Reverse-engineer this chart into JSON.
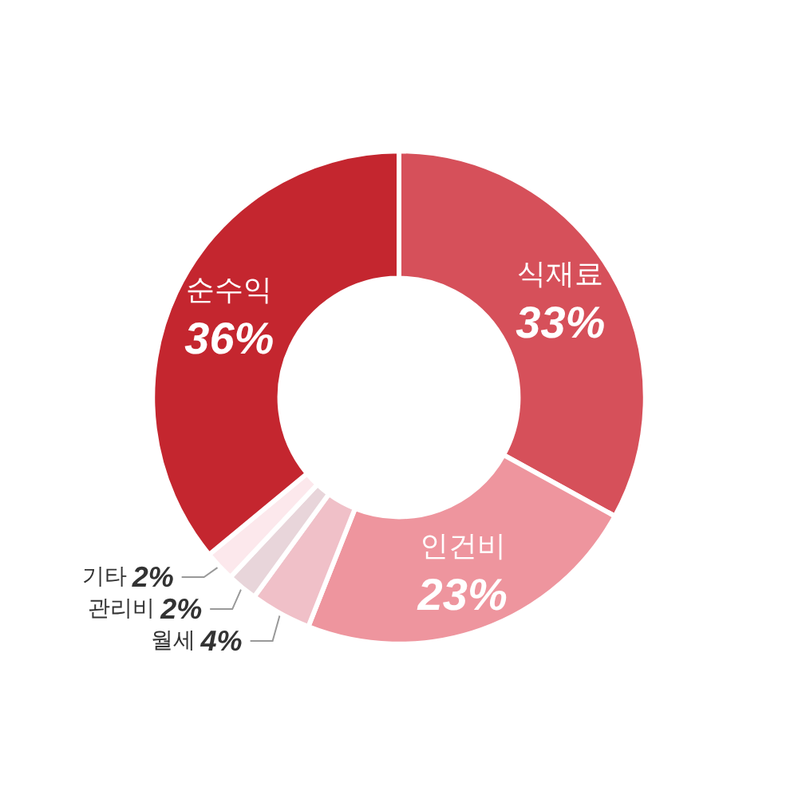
{
  "chart_data": {
    "type": "donut",
    "categories": [
      "식재료",
      "인건비",
      "월세",
      "관리비",
      "기타",
      "순수익"
    ],
    "values": [
      33,
      23,
      4,
      2,
      2,
      36
    ],
    "value_labels": [
      "33%",
      "23%",
      "4%",
      "2%",
      "2%",
      "36%"
    ],
    "colors": [
      "#d6505a",
      "#ee959e",
      "#f0c0c8",
      "#e8d5da",
      "#fce8ec",
      "#c4262f"
    ],
    "legend": false
  }
}
